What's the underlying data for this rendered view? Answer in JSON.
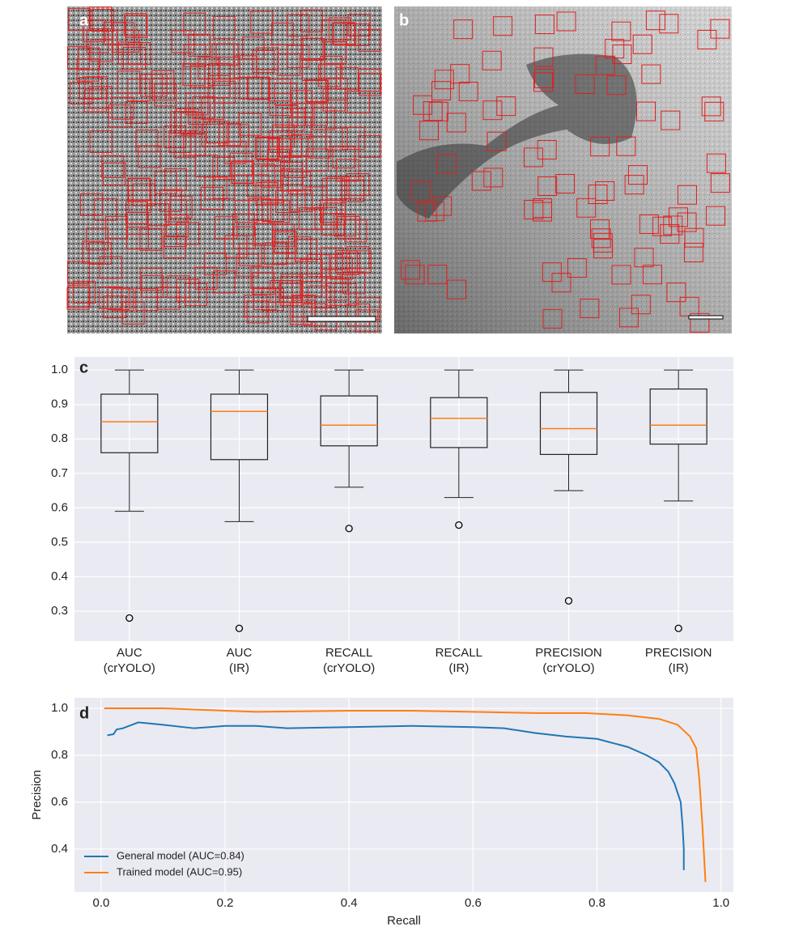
{
  "image_panels": [
    {
      "label": "a"
    },
    {
      "label": "b"
    }
  ],
  "chart_data": [
    {
      "type": "box",
      "panel_label": "c",
      "categories": [
        "AUC\n(crYOLO)",
        "AUC\n(IR)",
        "RECALL\n(crYOLO)",
        "RECALL\n(IR)",
        "PRECISION\n(crYOLO)",
        "PRECISION\n(IR)"
      ],
      "boxes": [
        {
          "whislo": 0.59,
          "q1": 0.76,
          "med": 0.85,
          "q3": 0.93,
          "whishi": 1.0,
          "fliers": [
            0.28
          ]
        },
        {
          "whislo": 0.56,
          "q1": 0.74,
          "med": 0.88,
          "q3": 0.93,
          "whishi": 1.0,
          "fliers": [
            0.25
          ]
        },
        {
          "whislo": 0.66,
          "q1": 0.78,
          "med": 0.84,
          "q3": 0.925,
          "whishi": 1.0,
          "fliers": [
            0.54
          ]
        },
        {
          "whislo": 0.63,
          "q1": 0.775,
          "med": 0.86,
          "q3": 0.92,
          "whishi": 1.0,
          "fliers": [
            0.55
          ]
        },
        {
          "whislo": 0.65,
          "q1": 0.755,
          "med": 0.83,
          "q3": 0.935,
          "whishi": 1.0,
          "fliers": [
            0.33
          ]
        },
        {
          "whislo": 0.62,
          "q1": 0.785,
          "med": 0.84,
          "q3": 0.945,
          "whishi": 1.0,
          "fliers": [
            0.25
          ]
        }
      ],
      "box_color": "#222222",
      "median_color": "#ff7f0e",
      "ylim": [
        0.213,
        1.038
      ],
      "yticks": [
        0.3,
        0.4,
        0.5,
        0.6,
        0.7,
        0.8,
        0.9,
        {
          "value": 1,
          "label": "1.0"
        }
      ],
      "grid": true
    },
    {
      "type": "line",
      "panel_label": "d",
      "x_label": "Recall",
      "y_label": "Precision",
      "series": [
        {
          "name": "General model (AUC=0.84)",
          "color": "#1f77b4",
          "x": [
            0.01,
            0.02,
            0.025,
            0.035,
            0.05,
            0.06,
            0.08,
            0.1,
            0.15,
            0.2,
            0.25,
            0.3,
            0.4,
            0.5,
            0.6,
            0.65,
            0.7,
            0.75,
            0.8,
            0.85,
            0.88,
            0.9,
            0.915,
            0.925,
            0.935,
            0.938,
            0.94,
            0.94
          ],
          "values": [
            0.885,
            0.89,
            0.91,
            0.915,
            0.93,
            0.94,
            0.935,
            0.93,
            0.915,
            0.925,
            0.925,
            0.915,
            0.92,
            0.925,
            0.92,
            0.915,
            0.895,
            0.88,
            0.87,
            0.835,
            0.8,
            0.77,
            0.73,
            0.68,
            0.6,
            0.5,
            0.4,
            0.31
          ]
        },
        {
          "name": "Trained model (AUC=0.95)",
          "color": "#ff7f0e",
          "x": [
            0.005,
            0.1,
            0.2,
            0.25,
            0.4,
            0.5,
            0.6,
            0.7,
            0.78,
            0.85,
            0.9,
            0.93,
            0.95,
            0.96,
            0.965,
            0.97,
            0.975
          ],
          "values": [
            1.0,
            1.0,
            0.99,
            0.985,
            0.99,
            0.99,
            0.985,
            0.98,
            0.98,
            0.97,
            0.955,
            0.93,
            0.88,
            0.83,
            0.7,
            0.5,
            0.26
          ]
        }
      ],
      "xlim": [
        -0.043,
        1.02
      ],
      "ylim": [
        0.217,
        1.045
      ],
      "xticks": [
        {
          "value": 0,
          "label": "0.0"
        },
        0.2,
        0.4,
        0.6,
        0.8,
        {
          "value": 1,
          "label": "1.0"
        }
      ],
      "yticks": [
        0.4,
        0.6,
        0.8,
        {
          "value": 1,
          "label": "1.0"
        }
      ],
      "grid": true,
      "legend": "lower left"
    }
  ]
}
